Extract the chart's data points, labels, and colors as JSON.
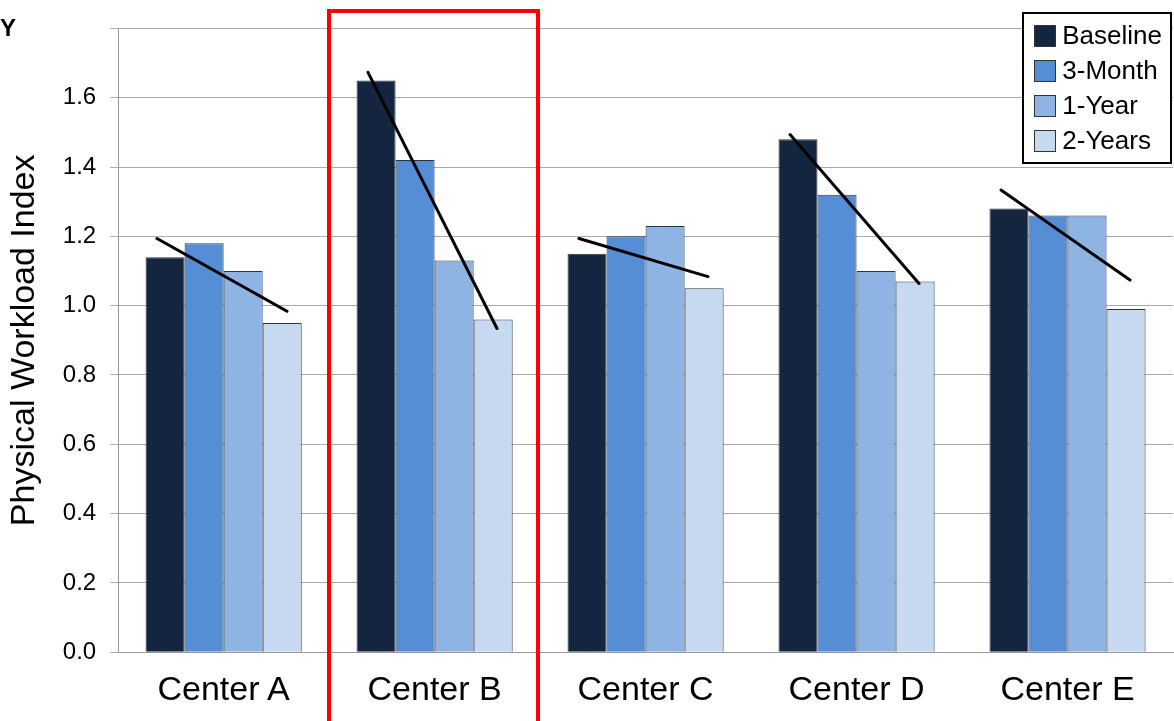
{
  "chart_data": {
    "type": "bar",
    "ylabel": "Physical Workload Index",
    "annotations": [
      "Y"
    ],
    "categories": [
      "Center A",
      "Center B",
      "Center C",
      "Center D",
      "Center E"
    ],
    "series": [
      {
        "name": "Baseline",
        "color": "#14263f",
        "values": [
          1.14,
          1.65,
          1.15,
          1.48,
          1.28
        ]
      },
      {
        "name": "3-Month",
        "color": "#558ed5",
        "values": [
          1.18,
          1.42,
          1.2,
          1.32,
          1.26
        ]
      },
      {
        "name": "1-Year",
        "color": "#8eb4e3",
        "values": [
          1.1,
          1.13,
          1.23,
          1.1,
          1.26
        ]
      },
      {
        "name": "2-Years",
        "color": "#c6d9f1",
        "values": [
          0.95,
          0.96,
          1.05,
          1.07,
          0.99
        ]
      }
    ],
    "ylim": [
      0,
      1.8
    ],
    "yticks": [
      {
        "value": 0,
        "label": "0.0"
      },
      0.2,
      0.4,
      0.6,
      0.8,
      {
        "value": 1,
        "label": "1.0"
      },
      1.2,
      1.4,
      1.6,
      {
        "value": 1.8,
        "label": null
      }
    ],
    "grid": "y",
    "legend": "top right"
  }
}
